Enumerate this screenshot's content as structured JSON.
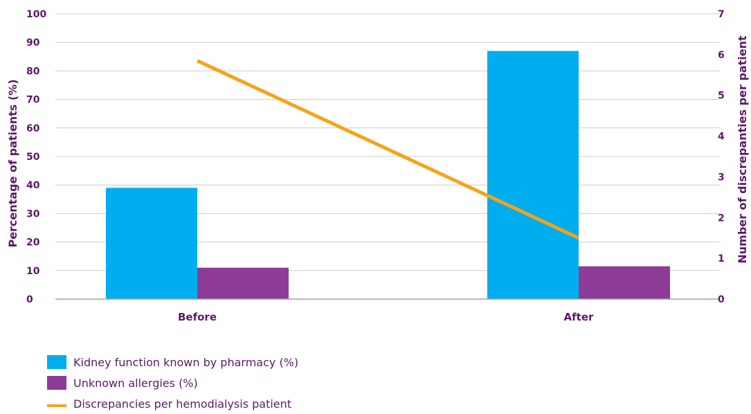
{
  "chart_data": {
    "type": "bar",
    "categories": [
      "Before",
      "After"
    ],
    "series": [
      {
        "name": "Kidney function known by pharmacy (%)",
        "type": "bar",
        "axis": "left",
        "values": [
          39,
          87
        ],
        "color": "#00aeef"
      },
      {
        "name": "Unknown allergies (%)",
        "type": "bar",
        "axis": "left",
        "values": [
          11,
          11.5
        ],
        "color": "#8e3a97"
      },
      {
        "name": "Discrepancies per hemodialysis patient",
        "type": "line",
        "axis": "right",
        "values": [
          5.85,
          1.5
        ],
        "color": "#f7a21b"
      }
    ],
    "ylabel": "Percentage of patients (%)",
    "y2label": "Number of discrepanties per patient",
    "ylim": [
      0,
      100
    ],
    "y2lim": [
      0,
      7
    ],
    "yticks": [
      "0",
      "10",
      "20",
      "30",
      "40",
      "50",
      "60",
      "70",
      "80",
      "90",
      "100"
    ],
    "y2ticks": [
      "0",
      "1",
      "2",
      "3",
      "4",
      "5",
      "6",
      "7"
    ],
    "grid": true,
    "legend_position": "bottom-left"
  }
}
